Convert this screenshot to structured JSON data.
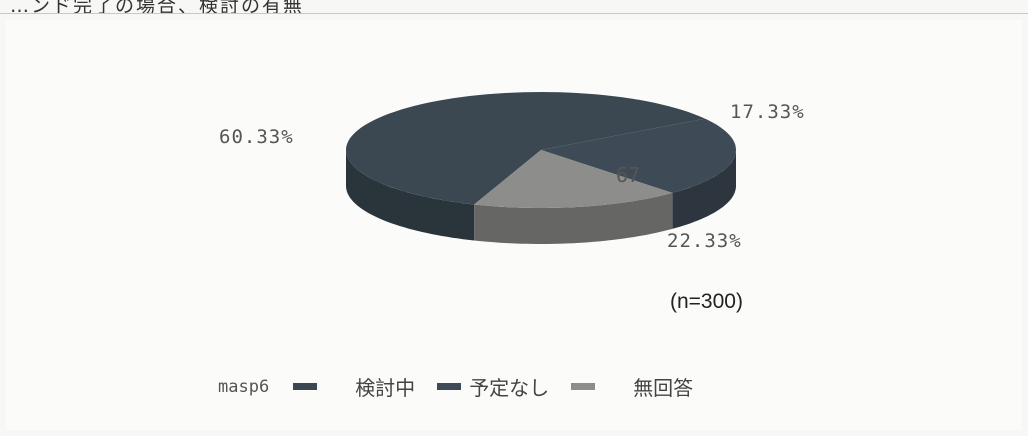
{
  "page": {
    "title_fragment": "…ンド完了の場合、検討の有無"
  },
  "chart_data": {
    "type": "pie",
    "categories": [
      "検討中",
      "予定なし",
      "無回答"
    ],
    "values": [
      60.33,
      22.33,
      17.33
    ],
    "percent_labels": [
      "60.33%",
      "22.33%",
      "17.33%"
    ],
    "slice_value_label": "67",
    "colors": [
      "#3b4852",
      "#3e4b56",
      "#8d8e8c"
    ],
    "legend_title": "masp6",
    "legend_position": "bottom",
    "note": "(n=300)"
  }
}
